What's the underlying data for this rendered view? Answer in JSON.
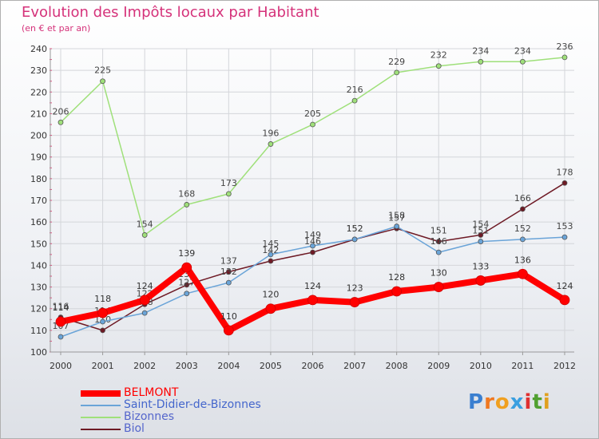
{
  "chart_data": {
    "type": "line",
    "title": "Evolution des Impôts locaux par Habitant",
    "subtitle": "(en € et par an)",
    "xlabel": "",
    "ylabel": "",
    "ylim": [
      100,
      240
    ],
    "y_ticks": [
      100,
      110,
      120,
      130,
      140,
      150,
      160,
      170,
      180,
      190,
      200,
      210,
      220,
      230,
      240
    ],
    "categories": [
      "2000",
      "2001",
      "2002",
      "2003",
      "2004",
      "2005",
      "2006",
      "2007",
      "2008",
      "2009",
      "2010",
      "2011",
      "2012"
    ],
    "grid": true,
    "legend_position": "bottom-left",
    "series": [
      {
        "name": "Biol",
        "color": "#6e1a25",
        "values": [
          116,
          110,
          122,
          131,
          137,
          142,
          146,
          152,
          157,
          151,
          154,
          166,
          178
        ]
      },
      {
        "name": "Saint-Didier-de-Bizonnes",
        "color": "#6aa4d8",
        "values": [
          107,
          114,
          118,
          127,
          132,
          145,
          149,
          152,
          158,
          146,
          151,
          152,
          153
        ]
      },
      {
        "name": "Bizonnes",
        "color": "#9fe07a",
        "values": [
          206,
          225,
          154,
          168,
          173,
          196,
          205,
          216,
          229,
          232,
          234,
          234,
          236
        ]
      },
      {
        "name": "BELMONT",
        "color": "#ff0000",
        "values": [
          114,
          118,
          124,
          139,
          110,
          120,
          124,
          123,
          128,
          130,
          133,
          136,
          124
        ]
      }
    ],
    "legend": [
      {
        "name": "BELMONT",
        "color": "#ff0000"
      },
      {
        "name": "Saint-Didier-de-Bizonnes",
        "color": "#6aa4d8"
      },
      {
        "name": "Bizonnes",
        "color": "#9fe07a"
      },
      {
        "name": "Biol",
        "color": "#6e1a25"
      }
    ]
  },
  "logo": {
    "text": "Proxiti",
    "letters": [
      "P",
      "r",
      "o",
      "x",
      "i",
      "t",
      "i"
    ],
    "colors": [
      "#3a7fd0",
      "#f07820",
      "#f0a020",
      "#3a9fe0",
      "#e03030",
      "#50a030",
      "#e0a020"
    ]
  }
}
